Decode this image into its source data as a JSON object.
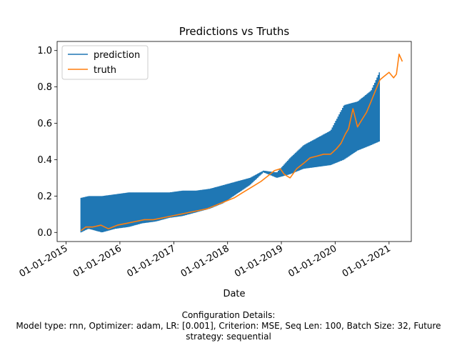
{
  "chart_data": {
    "type": "line",
    "title": "Predictions vs Truths",
    "xlabel": "Date",
    "ylabel": "",
    "x_tick_labels": [
      "01-01-2015",
      "01-01-2016",
      "01-01-2017",
      "01-01-2018",
      "01-01-2019",
      "01-01-2020",
      "01-01-2021"
    ],
    "y_ticks": [
      0.0,
      0.2,
      0.4,
      0.6,
      0.8,
      1.0
    ],
    "y_tick_labels": [
      "0.0",
      "0.2",
      "0.4",
      "0.6",
      "0.8",
      "1.0"
    ],
    "xlim": [
      "2014-11-01",
      "2021-06-01"
    ],
    "ylim": [
      -0.05,
      1.05
    ],
    "legend_position": "upper-left",
    "grid": false,
    "series": [
      {
        "name": "prediction",
        "color": "#1f77b4",
        "kind": "band",
        "x": [
          "2015-04-12",
          "2015-06-01",
          "2015-09-01",
          "2015-12-01",
          "2016-03-01",
          "2016-06-01",
          "2016-09-01",
          "2016-12-01",
          "2017-03-01",
          "2017-06-01",
          "2017-09-01",
          "2017-12-01",
          "2018-03-01",
          "2018-06-01",
          "2018-09-01",
          "2018-12-01",
          "2019-03-01",
          "2019-06-01",
          "2019-09-01",
          "2019-12-01",
          "2020-03-01",
          "2020-06-01",
          "2020-09-01",
          "2020-10-27"
        ],
        "low": [
          0.0,
          0.02,
          0.0,
          0.02,
          0.03,
          0.05,
          0.06,
          0.08,
          0.09,
          0.11,
          0.13,
          0.16,
          0.21,
          0.26,
          0.33,
          0.3,
          0.32,
          0.35,
          0.36,
          0.37,
          0.4,
          0.45,
          0.48,
          0.5
        ],
        "high": [
          0.19,
          0.2,
          0.2,
          0.21,
          0.22,
          0.22,
          0.22,
          0.22,
          0.23,
          0.23,
          0.24,
          0.26,
          0.28,
          0.3,
          0.34,
          0.33,
          0.41,
          0.48,
          0.52,
          0.56,
          0.7,
          0.72,
          0.78,
          0.88
        ]
      },
      {
        "name": "truth",
        "color": "#ff7f0e",
        "x": [
          "2015-04-12",
          "2015-05-15",
          "2015-07-01",
          "2015-08-25",
          "2015-10-15",
          "2015-12-15",
          "2016-02-15",
          "2016-04-15",
          "2016-06-15",
          "2016-08-15",
          "2016-10-15",
          "2016-12-15",
          "2017-02-15",
          "2017-04-15",
          "2017-06-15",
          "2017-08-15",
          "2017-10-15",
          "2017-12-15",
          "2018-02-15",
          "2018-04-15",
          "2018-06-15",
          "2018-08-15",
          "2018-10-01",
          "2018-11-15",
          "2018-12-25",
          "2019-01-20",
          "2019-03-01",
          "2019-04-15",
          "2019-06-01",
          "2019-07-15",
          "2019-09-01",
          "2019-10-15",
          "2019-12-01",
          "2020-01-10",
          "2020-02-10",
          "2020-03-10",
          "2020-04-01",
          "2020-05-01",
          "2020-06-01",
          "2020-07-01",
          "2020-08-01",
          "2020-09-01",
          "2020-10-01",
          "2020-11-01",
          "2020-12-01",
          "2021-01-01",
          "2021-02-01",
          "2021-02-20",
          "2021-03-10",
          "2021-04-01"
        ],
        "y": [
          0.01,
          0.03,
          0.03,
          0.04,
          0.02,
          0.04,
          0.05,
          0.06,
          0.07,
          0.07,
          0.08,
          0.09,
          0.1,
          0.11,
          0.12,
          0.13,
          0.15,
          0.17,
          0.19,
          0.22,
          0.25,
          0.28,
          0.31,
          0.34,
          0.35,
          0.32,
          0.3,
          0.35,
          0.38,
          0.41,
          0.42,
          0.43,
          0.43,
          0.46,
          0.49,
          0.54,
          0.57,
          0.68,
          0.58,
          0.62,
          0.66,
          0.72,
          0.78,
          0.84,
          0.86,
          0.88,
          0.85,
          0.87,
          0.98,
          0.94
        ]
      }
    ]
  },
  "caption": {
    "heading": "Configuration Details:",
    "line1": "Model type: rnn, Optimizer: adam, LR: [0.001], Criterion: MSE, Seq Len: 100, Batch Size: 32, Future",
    "line2": "strategy: sequential"
  }
}
